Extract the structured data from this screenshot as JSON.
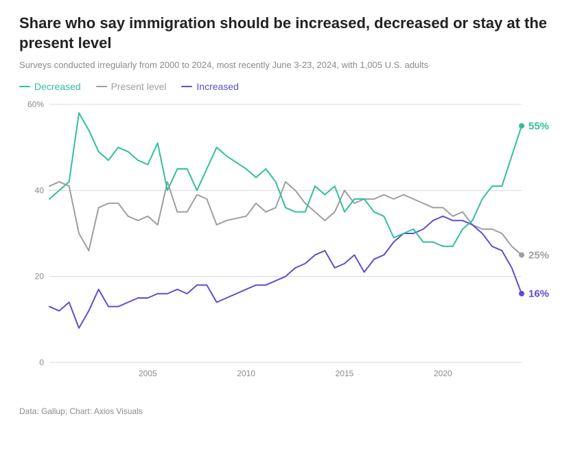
{
  "title": "Share who say immigration should be increased, decreased or stay at the present level",
  "subtitle": "Surveys conducted irregularly from 2000 to 2024, most recently June 3-23, 2024, with 1,005 U.S. adults",
  "credit": "Data: Gallup; Chart: Axios Visuals",
  "legend": {
    "decreased": "Decreased",
    "present": "Present level",
    "increased": "Increased"
  },
  "chart": {
    "type": "line",
    "background_color": "#ffffff",
    "grid_color": "#d9d9d9",
    "axis_text_color": "#8a8a8a",
    "line_width": 2,
    "marker_radius": 4,
    "x": {
      "min": 2000,
      "max": 2024,
      "ticks": [
        2005,
        2010,
        2015,
        2020
      ]
    },
    "y": {
      "min": 0,
      "max": 60,
      "ticks": [
        0,
        20,
        40,
        60
      ],
      "tick_suffix_first_only": "%"
    },
    "series": {
      "decreased": {
        "color": "#2fbf9e",
        "end_label": "55%",
        "data": [
          [
            2000.0,
            38
          ],
          [
            2001.0,
            42
          ],
          [
            2001.5,
            58
          ],
          [
            2002.0,
            54
          ],
          [
            2002.5,
            49
          ],
          [
            2003.0,
            47
          ],
          [
            2003.5,
            50
          ],
          [
            2004.0,
            49
          ],
          [
            2004.5,
            47
          ],
          [
            2005.0,
            46
          ],
          [
            2005.5,
            51
          ],
          [
            2006.0,
            40
          ],
          [
            2006.5,
            45
          ],
          [
            2007.0,
            45
          ],
          [
            2007.5,
            40
          ],
          [
            2008.0,
            45
          ],
          [
            2008.5,
            50
          ],
          [
            2009.0,
            48
          ],
          [
            2010.0,
            45
          ],
          [
            2010.5,
            43
          ],
          [
            2011.0,
            45
          ],
          [
            2011.5,
            42
          ],
          [
            2012.0,
            36
          ],
          [
            2012.5,
            35
          ],
          [
            2013.0,
            35
          ],
          [
            2013.5,
            41
          ],
          [
            2014.0,
            39
          ],
          [
            2014.5,
            41
          ],
          [
            2015.0,
            35
          ],
          [
            2015.5,
            38
          ],
          [
            2016.0,
            38
          ],
          [
            2016.5,
            35
          ],
          [
            2017.0,
            34
          ],
          [
            2017.5,
            29
          ],
          [
            2018.0,
            30
          ],
          [
            2018.5,
            31
          ],
          [
            2019.0,
            28
          ],
          [
            2019.5,
            28
          ],
          [
            2020.0,
            27
          ],
          [
            2020.5,
            27
          ],
          [
            2021.0,
            31
          ],
          [
            2021.5,
            33
          ],
          [
            2022.0,
            38
          ],
          [
            2022.5,
            41
          ],
          [
            2023.0,
            41
          ],
          [
            2024.0,
            55
          ]
        ]
      },
      "present": {
        "color": "#9e9e9e",
        "end_label": "25%",
        "data": [
          [
            2000.0,
            41
          ],
          [
            2000.5,
            42
          ],
          [
            2001.0,
            41
          ],
          [
            2001.5,
            30
          ],
          [
            2002.0,
            26
          ],
          [
            2002.5,
            36
          ],
          [
            2003.0,
            37
          ],
          [
            2003.5,
            37
          ],
          [
            2004.0,
            34
          ],
          [
            2004.5,
            33
          ],
          [
            2005.0,
            34
          ],
          [
            2005.5,
            32
          ],
          [
            2006.0,
            42
          ],
          [
            2006.5,
            35
          ],
          [
            2007.0,
            35
          ],
          [
            2007.5,
            39
          ],
          [
            2008.0,
            38
          ],
          [
            2008.5,
            32
          ],
          [
            2009.0,
            33
          ],
          [
            2010.0,
            34
          ],
          [
            2010.5,
            37
          ],
          [
            2011.0,
            35
          ],
          [
            2011.5,
            36
          ],
          [
            2012.0,
            42
          ],
          [
            2012.5,
            40
          ],
          [
            2013.0,
            37
          ],
          [
            2013.5,
            35
          ],
          [
            2014.0,
            33
          ],
          [
            2014.5,
            35
          ],
          [
            2015.0,
            40
          ],
          [
            2015.5,
            37
          ],
          [
            2016.0,
            38
          ],
          [
            2016.5,
            38
          ],
          [
            2017.0,
            39
          ],
          [
            2017.5,
            38
          ],
          [
            2018.0,
            39
          ],
          [
            2018.5,
            38
          ],
          [
            2019.0,
            37
          ],
          [
            2019.5,
            36
          ],
          [
            2020.0,
            36
          ],
          [
            2020.5,
            34
          ],
          [
            2021.0,
            35
          ],
          [
            2021.5,
            32
          ],
          [
            2022.0,
            31
          ],
          [
            2022.5,
            31
          ],
          [
            2023.0,
            30
          ],
          [
            2023.5,
            27
          ],
          [
            2024.0,
            25
          ]
        ]
      },
      "increased": {
        "color": "#5a4fcf",
        "end_label": "16%",
        "data": [
          [
            2000.0,
            13
          ],
          [
            2000.5,
            12
          ],
          [
            2001.0,
            14
          ],
          [
            2001.5,
            8
          ],
          [
            2002.0,
            12
          ],
          [
            2002.5,
            17
          ],
          [
            2003.0,
            13
          ],
          [
            2003.5,
            13
          ],
          [
            2004.0,
            14
          ],
          [
            2004.5,
            15
          ],
          [
            2005.0,
            15
          ],
          [
            2005.5,
            16
          ],
          [
            2006.0,
            16
          ],
          [
            2006.5,
            17
          ],
          [
            2007.0,
            16
          ],
          [
            2007.5,
            18
          ],
          [
            2008.0,
            18
          ],
          [
            2008.5,
            14
          ],
          [
            2009.0,
            15
          ],
          [
            2010.0,
            17
          ],
          [
            2010.5,
            18
          ],
          [
            2011.0,
            18
          ],
          [
            2011.5,
            19
          ],
          [
            2012.0,
            20
          ],
          [
            2012.5,
            22
          ],
          [
            2013.0,
            23
          ],
          [
            2013.5,
            25
          ],
          [
            2014.0,
            26
          ],
          [
            2014.5,
            22
          ],
          [
            2015.0,
            23
          ],
          [
            2015.5,
            25
          ],
          [
            2016.0,
            21
          ],
          [
            2016.5,
            24
          ],
          [
            2017.0,
            25
          ],
          [
            2017.5,
            28
          ],
          [
            2018.0,
            30
          ],
          [
            2018.5,
            30
          ],
          [
            2019.0,
            31
          ],
          [
            2019.5,
            33
          ],
          [
            2020.0,
            34
          ],
          [
            2020.5,
            33
          ],
          [
            2021.0,
            33
          ],
          [
            2021.5,
            32
          ],
          [
            2022.0,
            30
          ],
          [
            2022.5,
            27
          ],
          [
            2023.0,
            26
          ],
          [
            2023.5,
            22
          ],
          [
            2024.0,
            16
          ]
        ]
      }
    }
  }
}
